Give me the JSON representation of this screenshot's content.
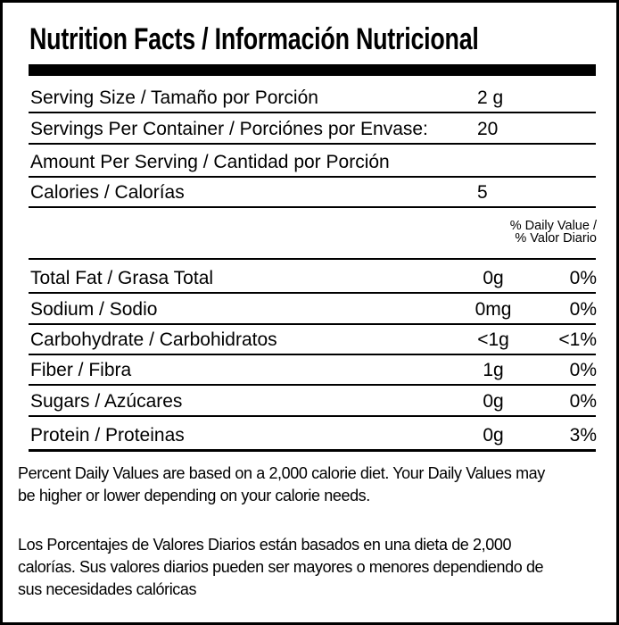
{
  "header": {
    "title": "Nutrition Facts / Información Nutricional"
  },
  "serving_rows": [
    {
      "label": "Serving Size / Tamaño por Porción",
      "value": "2 g"
    },
    {
      "label": "Servings Per Container / Porciónes por Envase:",
      "value": "20"
    },
    {
      "label": "Amount Per Serving / Cantidad por Porción",
      "value": null
    },
    {
      "label": "Calories / Calorías",
      "value": "5"
    }
  ],
  "daily_value_header": [
    "% Daily Value /",
    "% Valor Diario"
  ],
  "nutrients": [
    {
      "label": "Total Fat / Grasa Total",
      "amount": "0g",
      "daily_value": "0%"
    },
    {
      "label": "Sodium / Sodio",
      "amount": "0mg",
      "daily_value": "0%"
    },
    {
      "label": "Carbohydrate / Carbohidratos",
      "amount": "<1g",
      "daily_value": "<1%"
    },
    {
      "label": "Fiber / Fibra",
      "amount": "1g",
      "daily_value": "0%"
    },
    {
      "label": "Sugars / Azúcares",
      "amount": "0g",
      "daily_value": "0%"
    },
    {
      "label": "Protein / Proteinas",
      "amount": "0g",
      "daily_value": "3%"
    }
  ],
  "footnotes": [
    [
      "Percent Daily Values are based on a 2,000 calorie diet. Your Daily Values may",
      "be higher or lower depending on your calorie needs."
    ],
    [
      "Los Porcentajes de Valores Diarios están basados en una dieta de 2,000",
      "calorías. Sus valores diarios pueden ser mayores o menores dependiendo de",
      "sus necesidades calóricas"
    ]
  ]
}
